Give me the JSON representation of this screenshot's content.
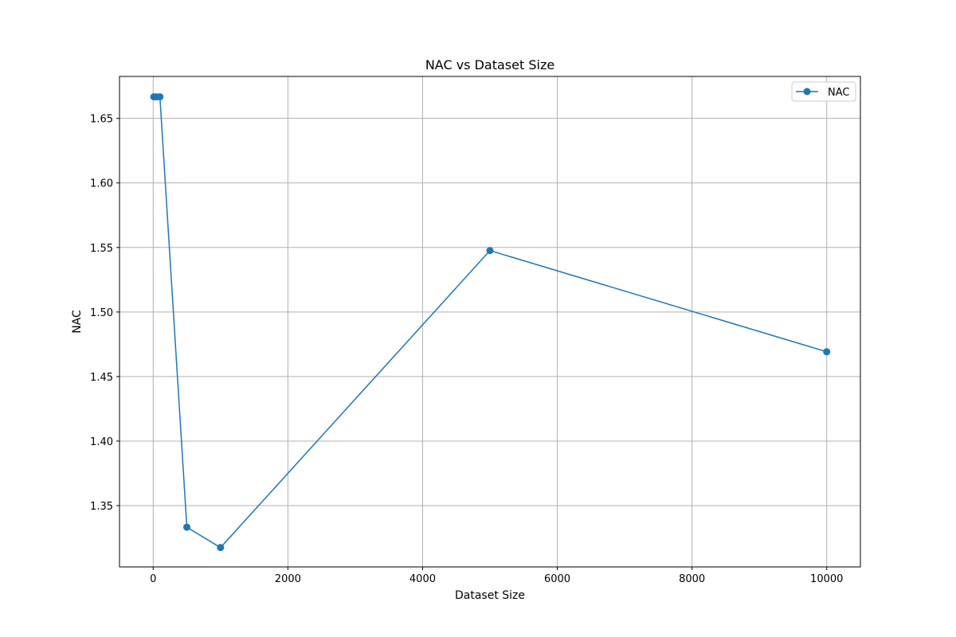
{
  "chart_data": {
    "type": "line",
    "title": "NAC vs Dataset Size",
    "xlabel": "Dataset Size",
    "ylabel": "NAC",
    "xlim": [
      -500,
      10500
    ],
    "ylim": [
      1.3025,
      1.6825
    ],
    "xticks": [
      0,
      2000,
      4000,
      6000,
      8000,
      10000
    ],
    "yticks": [
      1.35,
      1.4,
      1.45,
      1.5,
      1.55,
      1.6,
      1.65
    ],
    "xtick_labels": [
      "0",
      "2000",
      "4000",
      "6000",
      "8000",
      "10000"
    ],
    "ytick_labels": [
      "1.35",
      "1.40",
      "1.45",
      "1.50",
      "1.55",
      "1.60",
      "1.65"
    ],
    "grid": true,
    "legend_position": "top-right",
    "series": [
      {
        "name": "NAC",
        "color": "#1f77b4",
        "marker": "circle",
        "x": [
          10,
          50,
          100,
          500,
          1000,
          5000,
          10000
        ],
        "y": [
          1.6667,
          1.6667,
          1.6667,
          1.3333,
          1.3175,
          1.5476,
          1.4692
        ]
      }
    ]
  }
}
